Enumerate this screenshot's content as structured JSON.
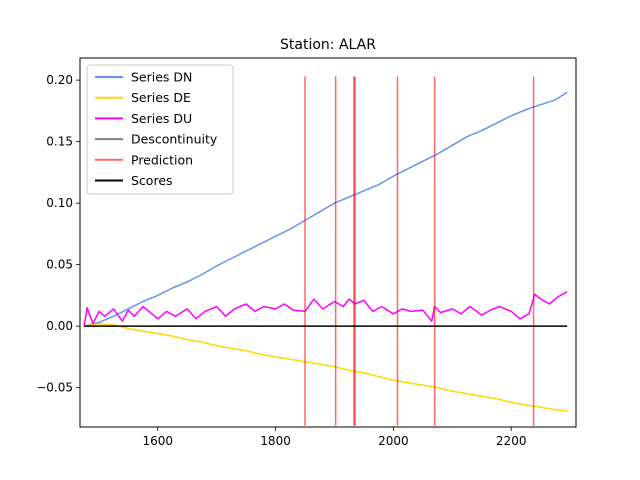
{
  "chart_data": {
    "type": "line",
    "title": "Station: ALAR",
    "xlabel": "",
    "ylabel": "",
    "xlim": [
      1468,
      2310
    ],
    "ylim": [
      -0.082,
      0.218
    ],
    "xticks": [
      1600,
      1800,
      2000,
      2200
    ],
    "xtick_labels": [
      "1600",
      "1800",
      "2000",
      "2200"
    ],
    "yticks": [
      -0.05,
      0.0,
      0.05,
      0.1,
      0.15,
      0.2
    ],
    "ytick_labels": [
      "−0.05",
      "0.00",
      "0.05",
      "0.10",
      "0.15",
      "0.20"
    ],
    "grid": false,
    "legend_position": "upper-left",
    "series": [
      {
        "name": "Series DN",
        "color": "#6495ED",
        "x": [
          1475,
          1500,
          1525,
          1550,
          1575,
          1600,
          1625,
          1650,
          1675,
          1700,
          1725,
          1750,
          1775,
          1800,
          1825,
          1850,
          1875,
          1900,
          1925,
          1950,
          1975,
          2000,
          2025,
          2050,
          2075,
          2100,
          2125,
          2150,
          2175,
          2200,
          2225,
          2250,
          2275,
          2295
        ],
        "y": [
          0.0,
          0.003,
          0.008,
          0.014,
          0.02,
          0.025,
          0.031,
          0.036,
          0.042,
          0.049,
          0.055,
          0.061,
          0.067,
          0.073,
          0.079,
          0.086,
          0.093,
          0.1,
          0.105,
          0.11,
          0.115,
          0.122,
          0.128,
          0.134,
          0.14,
          0.147,
          0.154,
          0.159,
          0.165,
          0.171,
          0.176,
          0.18,
          0.184,
          0.19
        ]
      },
      {
        "name": "Series DE",
        "color": "#FFD700",
        "x": [
          1475,
          1500,
          1525,
          1550,
          1575,
          1600,
          1625,
          1650,
          1675,
          1700,
          1725,
          1750,
          1775,
          1800,
          1825,
          1850,
          1875,
          1900,
          1925,
          1950,
          1975,
          2000,
          2025,
          2050,
          2075,
          2100,
          2125,
          2150,
          2175,
          2200,
          2225,
          2250,
          2275,
          2295
        ],
        "y": [
          0.0,
          0.002,
          0.001,
          -0.002,
          -0.004,
          -0.006,
          -0.008,
          -0.011,
          -0.013,
          -0.016,
          -0.018,
          -0.02,
          -0.023,
          -0.025,
          -0.027,
          -0.029,
          -0.031,
          -0.033,
          -0.036,
          -0.038,
          -0.041,
          -0.044,
          -0.046,
          -0.048,
          -0.05,
          -0.053,
          -0.055,
          -0.057,
          -0.059,
          -0.062,
          -0.064,
          -0.066,
          -0.068,
          -0.069
        ]
      },
      {
        "name": "Series DU",
        "color": "#FF00FF",
        "x": [
          1475,
          1480,
          1490,
          1500,
          1510,
          1525,
          1540,
          1550,
          1560,
          1575,
          1590,
          1600,
          1615,
          1630,
          1650,
          1665,
          1680,
          1700,
          1715,
          1730,
          1750,
          1765,
          1780,
          1800,
          1815,
          1830,
          1850,
          1865,
          1880,
          1900,
          1915,
          1925,
          1935,
          1950,
          1965,
          1980,
          2000,
          2015,
          2030,
          2050,
          2065,
          2070,
          2080,
          2100,
          2115,
          2130,
          2150,
          2165,
          2180,
          2200,
          2215,
          2230,
          2240,
          2250,
          2265,
          2280,
          2295
        ],
        "y": [
          0.0,
          0.015,
          0.002,
          0.012,
          0.008,
          0.014,
          0.004,
          0.013,
          0.008,
          0.016,
          0.01,
          0.006,
          0.012,
          0.008,
          0.014,
          0.006,
          0.012,
          0.016,
          0.008,
          0.014,
          0.018,
          0.012,
          0.016,
          0.014,
          0.018,
          0.013,
          0.012,
          0.022,
          0.014,
          0.02,
          0.016,
          0.022,
          0.018,
          0.021,
          0.012,
          0.016,
          0.01,
          0.014,
          0.012,
          0.013,
          0.004,
          0.016,
          0.011,
          0.014,
          0.01,
          0.016,
          0.009,
          0.013,
          0.016,
          0.012,
          0.006,
          0.01,
          0.026,
          0.022,
          0.018,
          0.024,
          0.028
        ]
      },
      {
        "name": "Descontinuity",
        "color": "#808080",
        "x": [],
        "y": []
      },
      {
        "name": "Prediction",
        "color": "#FF0000",
        "x_lines": [
          1850,
          1902,
          1933,
          1935,
          2007,
          2070,
          2238
        ]
      },
      {
        "name": "Scores",
        "color": "#000000",
        "x": [
          1475,
          2295
        ],
        "y": [
          0.0,
          0.0
        ]
      }
    ]
  }
}
